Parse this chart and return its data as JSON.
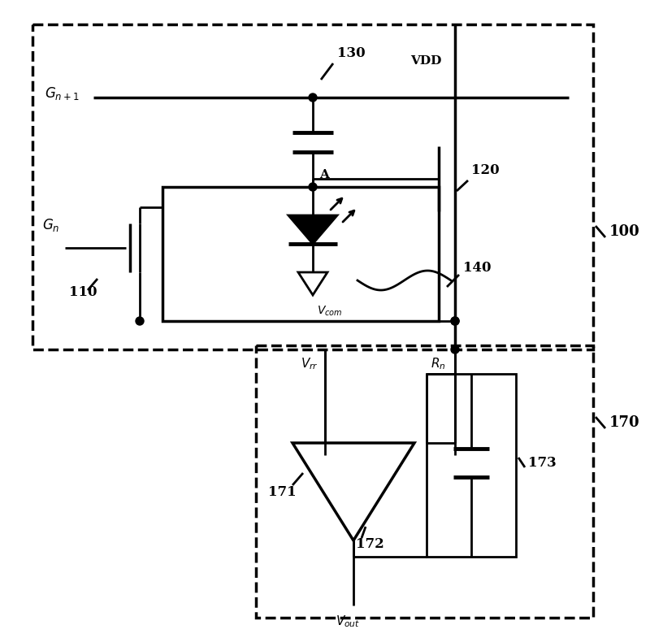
{
  "bg_color": "#ffffff",
  "lc": "#000000",
  "lw": 2.0,
  "lw_thick": 2.5,
  "figsize": [
    8.0,
    7.85
  ],
  "dpi": 100,
  "labels": {
    "100": "100",
    "110": "110",
    "120": "120",
    "130": "130",
    "140": "140",
    "170": "170",
    "171": "171",
    "172": "172",
    "173": "173",
    "Gn1": "$G_{n+1}$",
    "Gn": "$G_n$",
    "VDD": "VDD",
    "Vcom": "$V_{com}$",
    "Vrr": "$V_{rr}$",
    "Rn": "$R_n$",
    "Vout": "$V_{out}$",
    "A": "A"
  }
}
